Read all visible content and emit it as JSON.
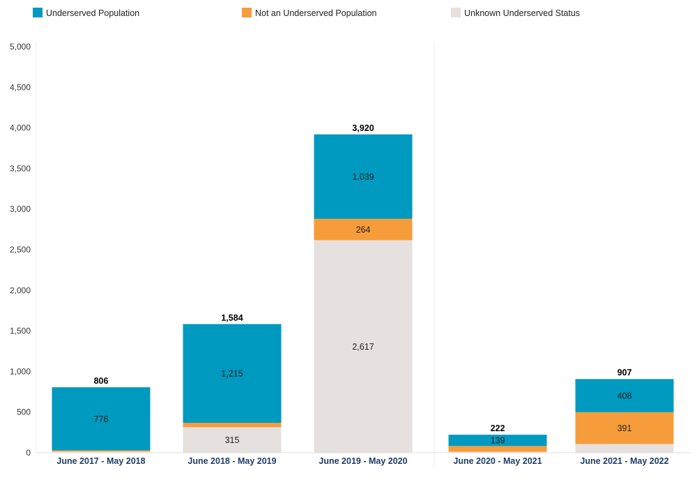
{
  "chart_data": {
    "type": "bar",
    "stacked": true,
    "categories": [
      "June 2017 - May 2018",
      "June 2018 - May 2019",
      "June 2019 - May 2020",
      "June 2020 - May 2021",
      "June 2021 - May 2022"
    ],
    "series": [
      {
        "name": "Unknown Underserved Status",
        "color": "#e6e0df",
        "values": [
          15,
          315,
          2617,
          12,
          108
        ],
        "labels": [
          "",
          "315",
          "2,617",
          "",
          ""
        ]
      },
      {
        "name": "Not an Underserved Population",
        "color": "#f79c3a",
        "values": [
          15,
          54,
          264,
          71,
          391
        ],
        "labels": [
          "",
          "",
          "264",
          "",
          "391"
        ]
      },
      {
        "name": "Underserved Population",
        "color": "#0099bf",
        "values": [
          776,
          1215,
          1039,
          139,
          408
        ],
        "labels": [
          "776",
          "1,215",
          "1,039",
          "139",
          "408"
        ]
      }
    ],
    "totals": [
      "806",
      "1,584",
      "3,920",
      "222",
      "907"
    ],
    "legend": [
      "Underserved Population",
      "Not an Underserved Population",
      "Unknown Underserved Status"
    ],
    "yticks": [
      "0",
      "500",
      "1,000",
      "1,500",
      "2,000",
      "2,500",
      "3,000",
      "3,500",
      "4,000",
      "4,500",
      "5,000"
    ],
    "ylim": [
      0,
      5000
    ],
    "title": "",
    "xlabel": "",
    "ylabel": ""
  }
}
